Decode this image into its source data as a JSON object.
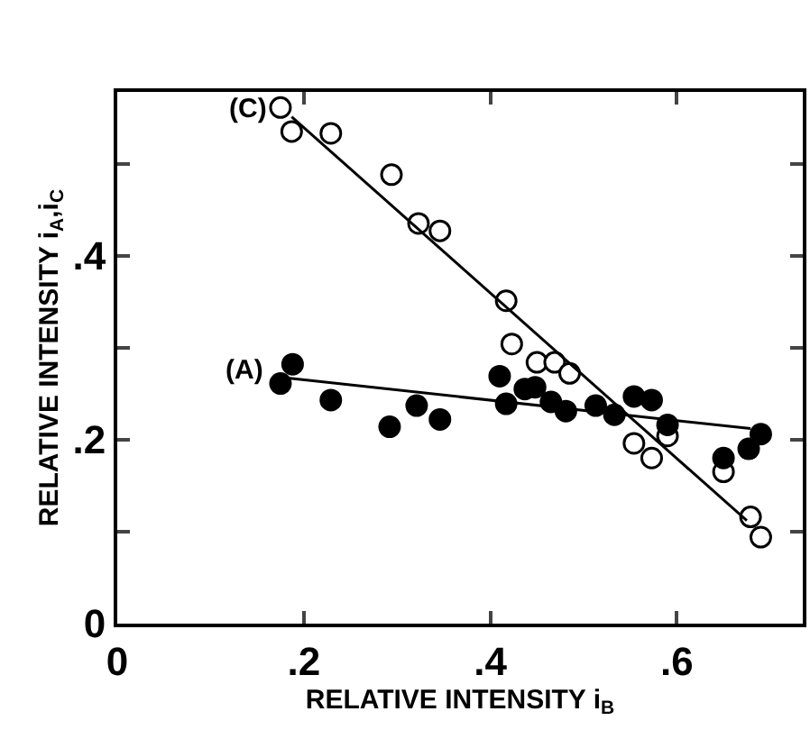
{
  "chart_data": {
    "type": "scatter",
    "xlabel": "RELATIVE INTENSITY i$_{B}$",
    "ylabel": "RELATIVE INTENSITY i$_{A}$,i$_{C}$",
    "xlim": [
      0,
      0.735
    ],
    "xticks": [
      0,
      {
        "value": 0.2,
        "label": ".2"
      },
      {
        "value": 0.4,
        "label": ".4"
      },
      {
        "value": 0.6,
        "label": ".6"
      }
    ],
    "ylim": [
      0,
      0.578
    ],
    "yticks": [
      0,
      {
        "value": 0.1,
        "label": null
      },
      {
        "value": 0.2,
        "label": ".2"
      },
      {
        "value": 0.3,
        "label": null
      },
      {
        "value": 0.4,
        "label": ".4"
      },
      {
        "value": 0.5,
        "label": null
      }
    ],
    "grid": false,
    "marker": "circle",
    "annotations": [
      "(C)",
      "(A)"
    ],
    "series": [
      {
        "color": "#ffffff",
        "x": [
          0.175,
          0.187,
          0.229,
          0.294,
          0.323,
          0.346,
          0.417,
          0.423,
          0.45,
          0.469,
          0.485,
          0.533,
          0.554,
          0.573,
          0.59,
          0.65,
          0.679,
          0.69
        ],
        "values": [
          0.561,
          0.535,
          0.533,
          0.488,
          0.435,
          0.427,
          0.351,
          0.304,
          0.284,
          0.284,
          0.272,
          null,
          0.196,
          0.18,
          0.204,
          0.165,
          0.116,
          0.094
        ]
      },
      {
        "color": "#000000",
        "x": [
          0.175,
          0.188,
          0.229,
          0.292,
          0.321,
          0.346,
          0.41,
          0.417,
          0.437,
          0.448,
          0.465,
          0.481,
          0.513,
          0.533,
          0.554,
          0.573,
          0.59,
          0.65,
          0.677,
          0.69
        ],
        "values": [
          0.261,
          0.282,
          0.243,
          0.214,
          0.237,
          0.222,
          0.269,
          0.239,
          0.255,
          0.257,
          0.241,
          0.231,
          0.237,
          0.227,
          0.247,
          0.243,
          0.216,
          0.18,
          0.19,
          0.206
        ]
      },
      {
        "type": "line",
        "color": "#000000",
        "marker": "none",
        "x": [
          0.187,
          0.675
        ],
        "values": [
          0.551,
          0.112
        ]
      },
      {
        "type": "line",
        "color": "#000000",
        "marker": "none",
        "x": [
          0.183,
          0.679
        ],
        "values": [
          0.267,
          0.212
        ]
      }
    ]
  }
}
